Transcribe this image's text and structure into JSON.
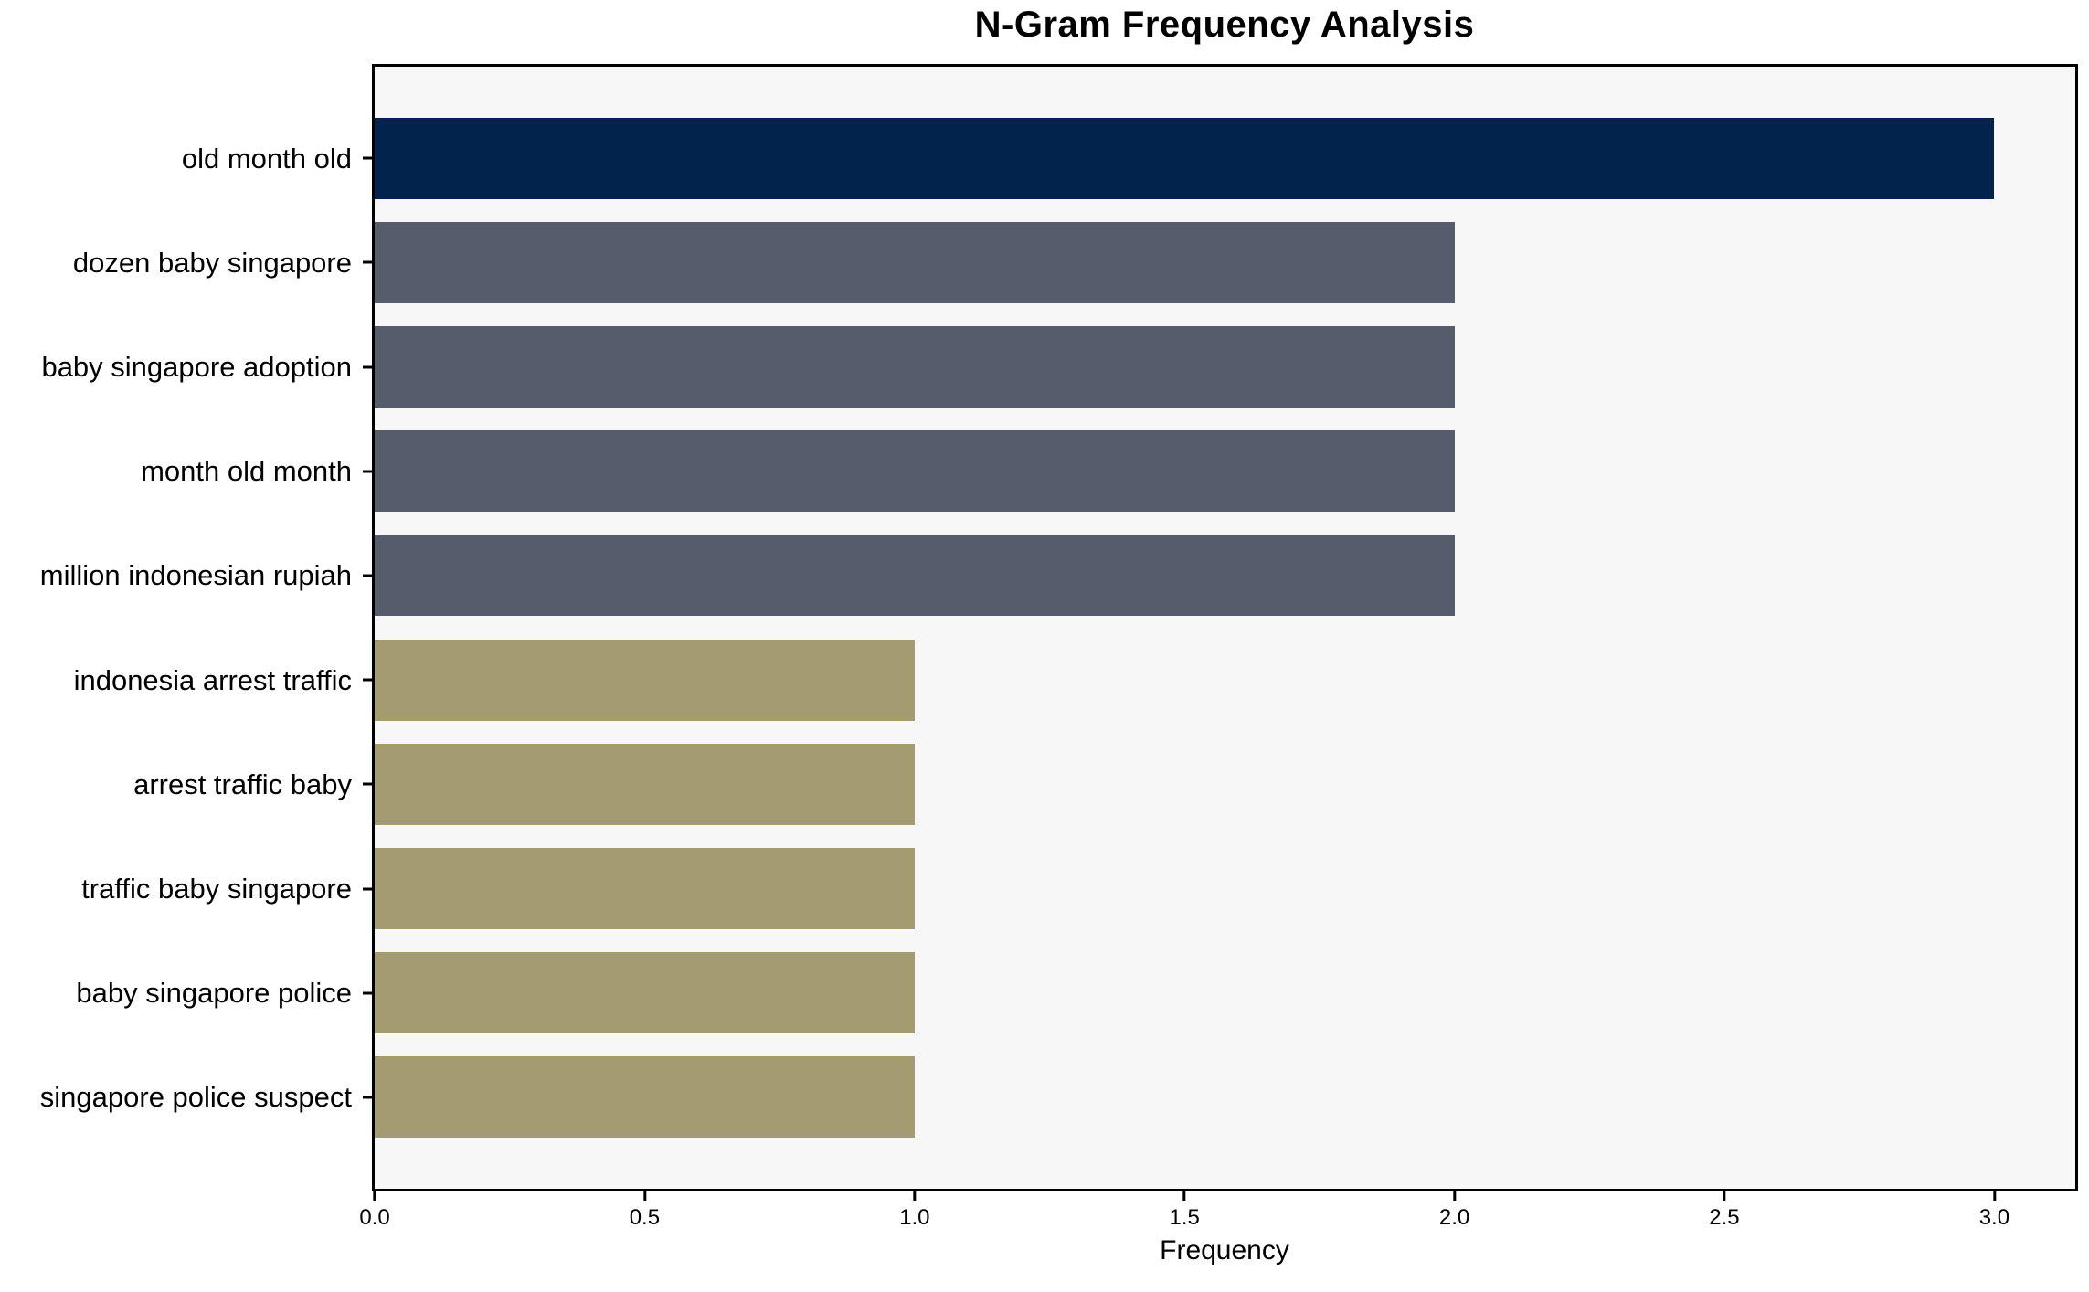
{
  "figure": {
    "background": "#ffffff",
    "plot_background": "#f7f7f8",
    "frame_color": "#000000"
  },
  "chart_data": {
    "type": "bar",
    "orientation": "horizontal",
    "title": "N-Gram Frequency Analysis",
    "xlabel": "Frequency",
    "ylabel": "",
    "categories": [
      "old month old",
      "dozen baby singapore",
      "baby singapore adoption",
      "month old month",
      "million indonesian rupiah",
      "indonesia arrest traffic",
      "arrest traffic baby",
      "traffic baby singapore",
      "baby singapore police",
      "singapore police suspect"
    ],
    "values": [
      3,
      2,
      2,
      2,
      2,
      1,
      1,
      1,
      1,
      1
    ],
    "bar_colors": [
      "#02234c",
      "#565c6b",
      "#565c6b",
      "#565c6b",
      "#565c6b",
      "#a49b70",
      "#a49b70",
      "#a49b70",
      "#a49b70",
      "#a49b70"
    ],
    "xlim": [
      0,
      3.15
    ],
    "xticks": [
      0,
      0.5,
      1,
      1.5,
      2,
      2.5,
      3
    ],
    "xtick_labels": [
      "0.0",
      "0.5",
      "1.0",
      "1.5",
      "2.0",
      "2.5",
      "3.0"
    ],
    "grid": false,
    "legend_position": "none"
  }
}
